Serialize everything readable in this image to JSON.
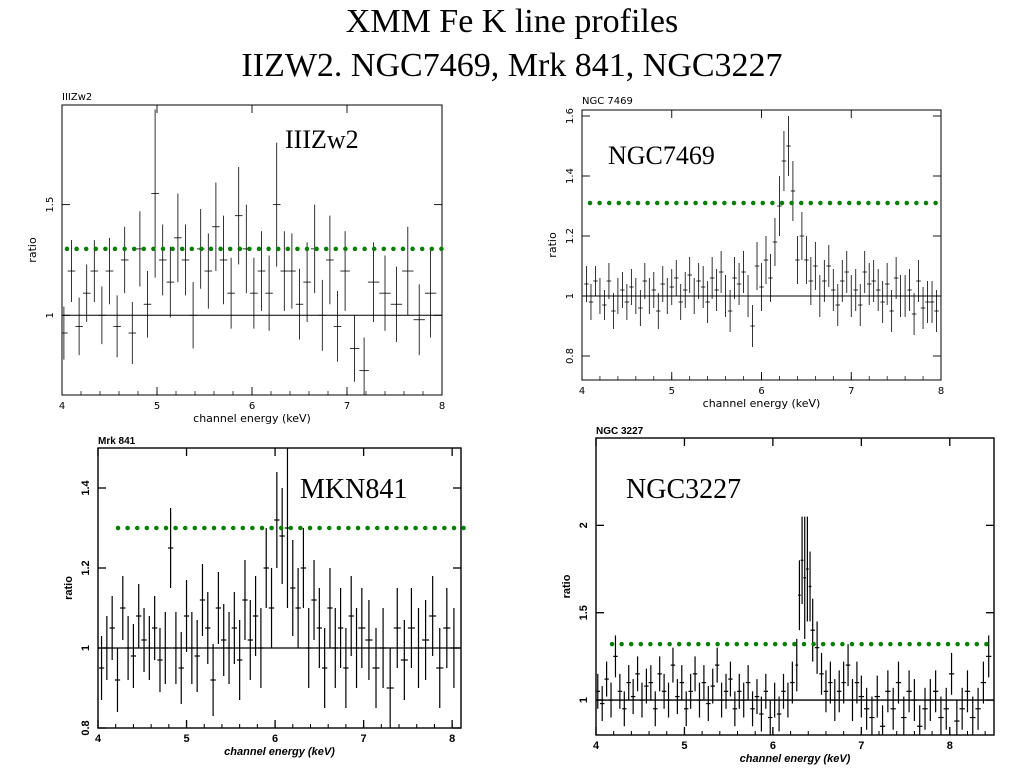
{
  "slide": {
    "title_line1": "XMM Fe K line profiles",
    "title_line2": "IIZW2. NGC7469, Mrk 841, NGC3227"
  },
  "colors": {
    "reference_line": "#008000",
    "data": "#000000"
  },
  "chart_data": [
    {
      "type": "scatter",
      "title": "IIIZw2",
      "annotation": "IIIZw2",
      "xlabel": "channel energy (keV)",
      "ylabel": "ratio",
      "xlim": [
        4,
        8
      ],
      "ylim": [
        0.64,
        1.95
      ],
      "xticks": [
        4,
        5,
        6,
        7,
        8
      ],
      "yticks": [
        1,
        1.5
      ],
      "reference_lines": {
        "unity": 1.0,
        "dotted_green": 1.3
      },
      "x": [
        4.02,
        4.1,
        4.18,
        4.26,
        4.34,
        4.42,
        4.5,
        4.58,
        4.66,
        4.74,
        4.82,
        4.9,
        4.98,
        5.06,
        5.14,
        5.22,
        5.3,
        5.38,
        5.46,
        5.54,
        5.62,
        5.7,
        5.78,
        5.86,
        5.94,
        6.02,
        6.1,
        6.18,
        6.26,
        6.34,
        6.42,
        6.5,
        6.58,
        6.66,
        6.74,
        6.82,
        6.9,
        6.98,
        7.08,
        7.18,
        7.28,
        7.4,
        7.52,
        7.64,
        7.76,
        7.88
      ],
      "y": [
        0.92,
        1.2,
        0.95,
        1.1,
        1.2,
        1.0,
        1.2,
        0.95,
        1.25,
        0.92,
        1.3,
        1.05,
        1.55,
        1.25,
        1.15,
        1.35,
        1.25,
        1.0,
        1.3,
        1.2,
        1.4,
        1.25,
        1.1,
        1.45,
        1.3,
        1.1,
        1.2,
        1.1,
        1.5,
        1.2,
        1.2,
        1.05,
        1.15,
        1.3,
        1.0,
        1.25,
        0.95,
        1.2,
        0.85,
        0.75,
        1.15,
        1.1,
        1.05,
        1.2,
        0.98,
        1.1
      ],
      "yerr": [
        0.12,
        0.14,
        0.13,
        0.13,
        0.14,
        0.13,
        0.15,
        0.14,
        0.15,
        0.14,
        0.17,
        0.15,
        0.38,
        0.16,
        0.16,
        0.2,
        0.16,
        0.15,
        0.18,
        0.17,
        0.2,
        0.2,
        0.16,
        0.22,
        0.2,
        0.16,
        0.18,
        0.17,
        0.28,
        0.18,
        0.17,
        0.16,
        0.18,
        0.2,
        0.16,
        0.2,
        0.16,
        0.18,
        0.15,
        0.15,
        0.18,
        0.17,
        0.17,
        0.2,
        0.16,
        0.2
      ]
    },
    {
      "type": "scatter",
      "title": "NGC 7469",
      "annotation": "NGC7469",
      "xlabel": "channel energy (keV)",
      "ylabel": "ratio",
      "xlim": [
        4,
        8
      ],
      "ylim": [
        0.72,
        1.62
      ],
      "xticks": [
        4,
        5,
        6,
        7,
        8
      ],
      "yticks": [
        0.8,
        1,
        1.2,
        1.4,
        1.6
      ],
      "reference_lines": {
        "unity": 1.0,
        "dotted_green": 1.31
      },
      "x": [
        4.05,
        4.1,
        4.15,
        4.2,
        4.25,
        4.3,
        4.35,
        4.4,
        4.45,
        4.5,
        4.55,
        4.6,
        4.65,
        4.7,
        4.75,
        4.8,
        4.85,
        4.9,
        4.95,
        5.0,
        5.05,
        5.1,
        5.15,
        5.2,
        5.25,
        5.3,
        5.35,
        5.4,
        5.45,
        5.5,
        5.55,
        5.6,
        5.65,
        5.7,
        5.75,
        5.8,
        5.85,
        5.9,
        5.95,
        6.0,
        6.05,
        6.1,
        6.15,
        6.2,
        6.25,
        6.3,
        6.35,
        6.4,
        6.45,
        6.5,
        6.55,
        6.6,
        6.65,
        6.7,
        6.75,
        6.8,
        6.85,
        6.9,
        6.95,
        7.0,
        7.05,
        7.1,
        7.15,
        7.2,
        7.25,
        7.3,
        7.35,
        7.4,
        7.45,
        7.5,
        7.55,
        7.6,
        7.65,
        7.7,
        7.75,
        7.8,
        7.85,
        7.9,
        7.95
      ],
      "y": [
        1.04,
        0.98,
        1.05,
        1.0,
        0.97,
        1.05,
        0.95,
        1.0,
        1.02,
        0.98,
        1.03,
        1.0,
        0.96,
        1.05,
        1.0,
        1.02,
        0.95,
        1.04,
        1.0,
        1.03,
        1.06,
        0.98,
        1.02,
        1.07,
        1.0,
        1.05,
        1.03,
        0.98,
        1.06,
        1.02,
        1.08,
        1.0,
        0.95,
        1.06,
        1.04,
        1.08,
        1.0,
        0.9,
        1.1,
        1.03,
        1.12,
        1.06,
        1.18,
        1.3,
        1.45,
        1.5,
        1.35,
        1.12,
        1.2,
        1.12,
        1.05,
        1.1,
        1.0,
        1.05,
        1.1,
        1.02,
        0.97,
        1.05,
        1.08,
        1.0,
        1.02,
        0.97,
        1.08,
        1.04,
        1.05,
        1.02,
        0.98,
        1.04,
        0.95,
        1.06,
        1.0,
        1.0,
        1.02,
        0.94,
        1.05,
        0.96,
        0.98,
        0.98,
        0.95
      ],
      "yerr": [
        0.06,
        0.06,
        0.05,
        0.06,
        0.05,
        0.06,
        0.06,
        0.06,
        0.06,
        0.06,
        0.06,
        0.06,
        0.06,
        0.06,
        0.06,
        0.06,
        0.06,
        0.06,
        0.06,
        0.06,
        0.06,
        0.06,
        0.06,
        0.06,
        0.06,
        0.06,
        0.07,
        0.07,
        0.07,
        0.07,
        0.07,
        0.07,
        0.07,
        0.07,
        0.07,
        0.07,
        0.07,
        0.07,
        0.08,
        0.08,
        0.08,
        0.08,
        0.08,
        0.1,
        0.1,
        0.1,
        0.1,
        0.08,
        0.08,
        0.08,
        0.08,
        0.08,
        0.07,
        0.07,
        0.07,
        0.07,
        0.07,
        0.07,
        0.07,
        0.07,
        0.07,
        0.07,
        0.07,
        0.07,
        0.07,
        0.07,
        0.07,
        0.07,
        0.07,
        0.07,
        0.07,
        0.07,
        0.07,
        0.07,
        0.07,
        0.07,
        0.07,
        0.07,
        0.07
      ]
    },
    {
      "type": "scatter",
      "title": "Mrk 841",
      "annotation": "MKN841",
      "xlabel": "channel energy (keV)",
      "ylabel": "ratio",
      "xlim": [
        4,
        8.1
      ],
      "ylim": [
        0.8,
        1.5
      ],
      "xticks": [
        4,
        5,
        6,
        7,
        8
      ],
      "yticks": [
        0.8,
        1,
        1.2,
        1.4
      ],
      "reference_lines": {
        "unity": 1.0,
        "dotted_green": 1.3
      },
      "x": [
        4.04,
        4.1,
        4.16,
        4.22,
        4.28,
        4.34,
        4.4,
        4.46,
        4.52,
        4.58,
        4.64,
        4.7,
        4.76,
        4.82,
        4.88,
        4.94,
        5.0,
        5.06,
        5.12,
        5.18,
        5.24,
        5.3,
        5.36,
        5.42,
        5.48,
        5.54,
        5.6,
        5.66,
        5.72,
        5.78,
        5.84,
        5.9,
        5.96,
        6.02,
        6.08,
        6.14,
        6.2,
        6.26,
        6.32,
        6.38,
        6.44,
        6.5,
        6.56,
        6.62,
        6.68,
        6.74,
        6.8,
        6.86,
        6.92,
        6.98,
        7.06,
        7.14,
        7.22,
        7.3,
        7.38,
        7.46,
        7.54,
        7.62,
        7.7,
        7.78,
        7.86,
        7.94,
        8.02
      ],
      "y": [
        0.95,
        1.0,
        1.05,
        0.92,
        1.1,
        1.0,
        0.98,
        1.08,
        1.02,
        1.0,
        1.05,
        0.97,
        1.0,
        1.25,
        1.0,
        0.95,
        1.08,
        1.0,
        0.98,
        1.12,
        1.05,
        0.92,
        1.1,
        1.02,
        1.0,
        1.05,
        0.97,
        1.12,
        1.02,
        1.08,
        1.0,
        1.2,
        1.1,
        1.32,
        1.28,
        1.3,
        1.15,
        1.1,
        1.2,
        1.0,
        1.12,
        1.05,
        0.95,
        1.1,
        1.0,
        1.05,
        0.95,
        1.08,
        1.0,
        1.05,
        1.02,
        0.95,
        1.0,
        0.9,
        1.05,
        0.97,
        1.05,
        1.0,
        1.02,
        1.08,
        0.95,
        1.05,
        1.0
      ],
      "yerr": [
        0.08,
        0.08,
        0.08,
        0.08,
        0.08,
        0.08,
        0.08,
        0.08,
        0.08,
        0.08,
        0.08,
        0.08,
        0.09,
        0.1,
        0.09,
        0.09,
        0.09,
        0.09,
        0.09,
        0.09,
        0.09,
        0.09,
        0.09,
        0.09,
        0.09,
        0.09,
        0.1,
        0.1,
        0.1,
        0.1,
        0.1,
        0.1,
        0.1,
        0.12,
        0.12,
        0.2,
        0.12,
        0.1,
        0.1,
        0.1,
        0.1,
        0.1,
        0.1,
        0.1,
        0.1,
        0.1,
        0.1,
        0.1,
        0.1,
        0.1,
        0.1,
        0.1,
        0.1,
        0.1,
        0.1,
        0.1,
        0.1,
        0.1,
        0.1,
        0.1,
        0.1,
        0.1,
        0.1
      ]
    },
    {
      "type": "scatter",
      "title": "NGC 3227",
      "annotation": "NGC3227",
      "xlabel": "channel energy (keV)",
      "ylabel": "ratio",
      "xlim": [
        4,
        8.5
      ],
      "ylim": [
        0.8,
        2.5
      ],
      "xticks": [
        4,
        5,
        6,
        7,
        8
      ],
      "yticks": [
        1,
        1.5,
        2
      ],
      "reference_lines": {
        "unity": 1.0,
        "dotted_green": 1.32
      },
      "x": [
        4.02,
        4.07,
        4.12,
        4.17,
        4.22,
        4.27,
        4.32,
        4.37,
        4.42,
        4.47,
        4.52,
        4.57,
        4.62,
        4.67,
        4.72,
        4.77,
        4.82,
        4.87,
        4.92,
        4.97,
        5.02,
        5.07,
        5.12,
        5.17,
        5.22,
        5.27,
        5.32,
        5.37,
        5.42,
        5.47,
        5.52,
        5.57,
        5.62,
        5.67,
        5.72,
        5.77,
        5.82,
        5.87,
        5.92,
        5.97,
        6.02,
        6.07,
        6.12,
        6.17,
        6.22,
        6.27,
        6.3,
        6.33,
        6.36,
        6.39,
        6.42,
        6.45,
        6.5,
        6.55,
        6.6,
        6.65,
        6.7,
        6.75,
        6.8,
        6.85,
        6.9,
        6.95,
        7.0,
        7.06,
        7.12,
        7.18,
        7.24,
        7.3,
        7.36,
        7.42,
        7.48,
        7.54,
        7.6,
        7.66,
        7.72,
        7.78,
        7.84,
        7.9,
        7.96,
        8.02,
        8.08,
        8.14,
        8.2,
        8.26,
        8.32,
        8.38,
        8.44
      ],
      "y": [
        1.05,
        0.98,
        1.12,
        1.0,
        1.25,
        1.05,
        0.95,
        1.1,
        1.02,
        1.15,
        1.0,
        1.08,
        1.1,
        0.95,
        1.15,
        1.05,
        1.0,
        1.2,
        1.02,
        1.1,
        0.95,
        1.05,
        1.15,
        1.0,
        1.1,
        0.98,
        1.08,
        1.2,
        1.0,
        1.05,
        1.12,
        0.95,
        1.05,
        1.0,
        1.1,
        0.95,
        1.02,
        0.92,
        1.05,
        0.9,
        1.0,
        0.92,
        1.05,
        1.0,
        1.1,
        1.2,
        1.6,
        1.8,
        1.7,
        1.75,
        1.65,
        1.4,
        1.3,
        1.15,
        1.05,
        1.1,
        1.0,
        1.05,
        1.1,
        1.2,
        1.0,
        1.1,
        1.02,
        0.95,
        0.9,
        1.02,
        0.85,
        1.05,
        0.95,
        1.1,
        0.9,
        1.05,
        1.0,
        0.85,
        0.95,
        1.0,
        1.05,
        0.9,
        0.95,
        1.15,
        0.88,
        0.95,
        1.05,
        0.9,
        0.95,
        1.1,
        1.25
      ],
      "yerr": [
        0.1,
        0.1,
        0.1,
        0.1,
        0.12,
        0.1,
        0.1,
        0.1,
        0.1,
        0.1,
        0.1,
        0.1,
        0.1,
        0.1,
        0.1,
        0.1,
        0.1,
        0.1,
        0.1,
        0.1,
        0.1,
        0.1,
        0.1,
        0.1,
        0.1,
        0.1,
        0.1,
        0.1,
        0.1,
        0.1,
        0.1,
        0.1,
        0.1,
        0.1,
        0.1,
        0.1,
        0.1,
        0.1,
        0.1,
        0.1,
        0.1,
        0.1,
        0.1,
        0.1,
        0.12,
        0.15,
        0.2,
        0.25,
        0.35,
        0.3,
        0.2,
        0.18,
        0.15,
        0.12,
        0.12,
        0.12,
        0.12,
        0.12,
        0.12,
        0.12,
        0.12,
        0.12,
        0.12,
        0.12,
        0.12,
        0.12,
        0.12,
        0.12,
        0.12,
        0.12,
        0.12,
        0.12,
        0.12,
        0.12,
        0.12,
        0.12,
        0.12,
        0.12,
        0.12,
        0.12,
        0.12,
        0.12,
        0.12,
        0.12,
        0.12,
        0.12,
        0.12
      ]
    }
  ]
}
